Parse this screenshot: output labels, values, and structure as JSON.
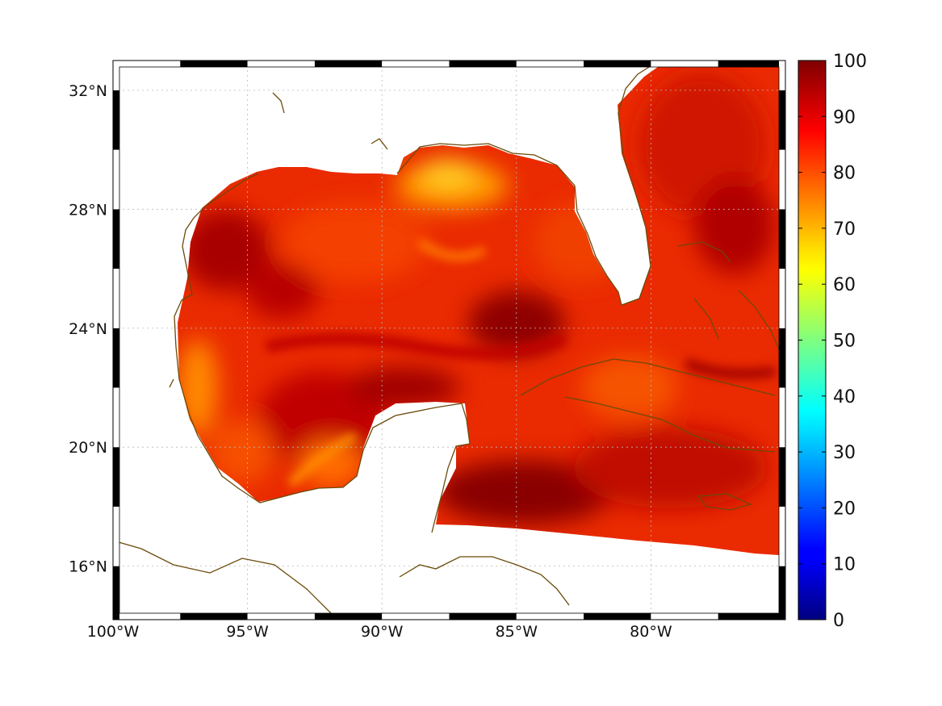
{
  "map": {
    "lon_range": [
      -100,
      -75
    ],
    "lat_range": [
      14.2,
      33
    ],
    "lon_ticks": [
      {
        "value": -100,
        "label": "100°W"
      },
      {
        "value": -95,
        "label": "95°W"
      },
      {
        "value": -90,
        "label": "90°W"
      },
      {
        "value": -85,
        "label": "85°W"
      },
      {
        "value": -80,
        "label": "80°W"
      }
    ],
    "lat_ticks": [
      {
        "value": 32,
        "label": "32°N"
      },
      {
        "value": 28,
        "label": "28°N"
      },
      {
        "value": 24,
        "label": "24°N"
      },
      {
        "value": 20,
        "label": "20°N"
      },
      {
        "value": 16,
        "label": "16°N"
      }
    ],
    "grid": "dotted",
    "frame": "alternating black-white border",
    "coastline_color": "#6b4a0a",
    "field_colors": [
      "#8b0000",
      "#b40000",
      "#d81400",
      "#ee3300",
      "#ff6a00",
      "#ffb000",
      "#ffd21a"
    ]
  },
  "colorbar": {
    "range": [
      0,
      100
    ],
    "ticks": [
      {
        "value": 0,
        "label": "0"
      },
      {
        "value": 10,
        "label": "10"
      },
      {
        "value": 20,
        "label": "20"
      },
      {
        "value": 30,
        "label": "30"
      },
      {
        "value": 40,
        "label": "40"
      },
      {
        "value": 50,
        "label": "50"
      },
      {
        "value": 60,
        "label": "60"
      },
      {
        "value": 70,
        "label": "70"
      },
      {
        "value": 80,
        "label": "80"
      },
      {
        "value": 90,
        "label": "90"
      },
      {
        "value": 100,
        "label": "100"
      }
    ],
    "colormap": "jet"
  }
}
